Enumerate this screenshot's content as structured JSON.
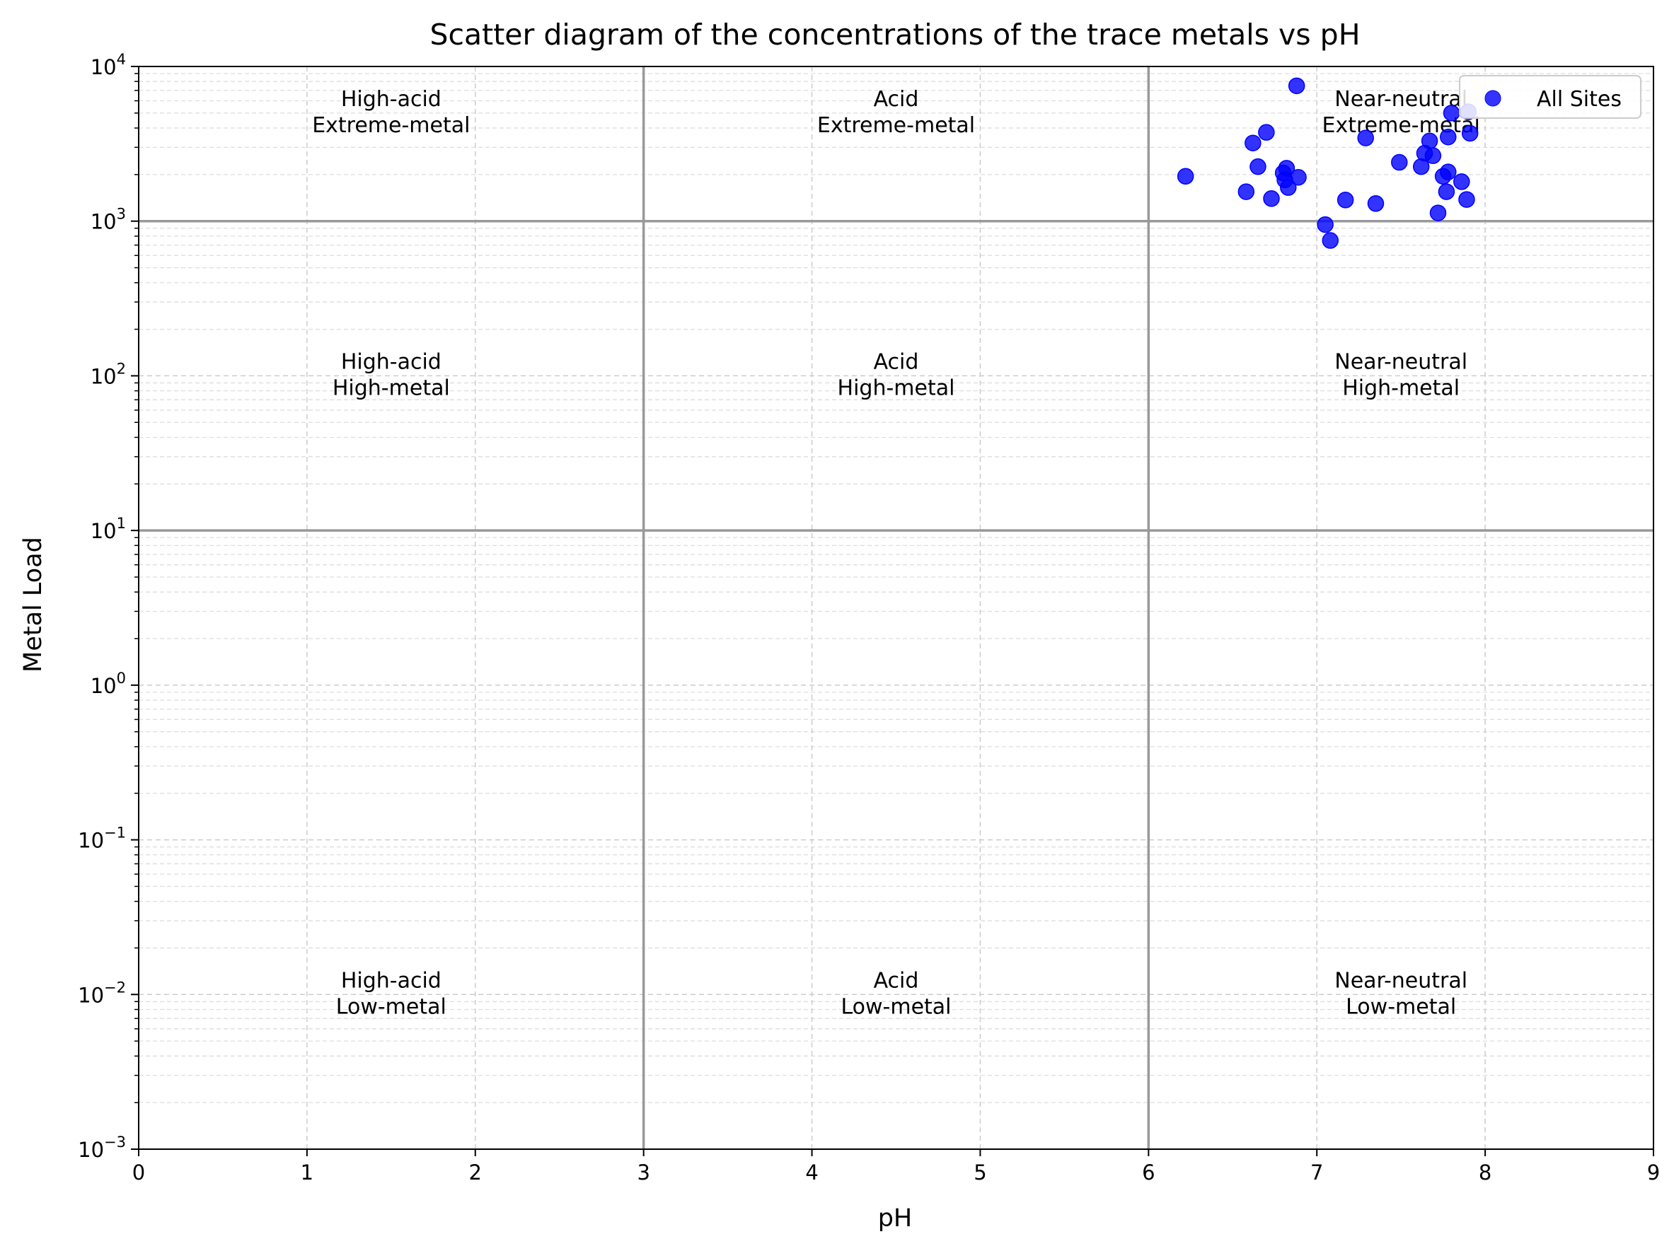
{
  "chart_data": {
    "type": "scatter",
    "title": "Scatter diagram of the concentrations of the trace metals vs pH",
    "xlabel": "pH",
    "ylabel": "Metal Load",
    "xlim": [
      0,
      9
    ],
    "ylim": [
      0.001,
      10000
    ],
    "yscale": "log",
    "grid": true,
    "x_ticks": [
      "0",
      "1",
      "2",
      "3",
      "4",
      "5",
      "6",
      "7",
      "8",
      "9"
    ],
    "y_tick_mantissa": "10",
    "y_tick_exponents": [
      "−3",
      "−2",
      "−1",
      "0",
      "1",
      "2",
      "3",
      "4"
    ],
    "thresholds": {
      "x": [
        3,
        6
      ],
      "y": [
        10,
        1000
      ]
    },
    "legend": {
      "position": "top-right",
      "entries": [
        "All Sites"
      ]
    },
    "zones": [
      {
        "x": 1.5,
        "y": 5000,
        "line1": "High-acid",
        "line2": "Extreme-metal"
      },
      {
        "x": 4.5,
        "y": 5000,
        "line1": "Acid",
        "line2": "Extreme-metal"
      },
      {
        "x": 7.5,
        "y": 5000,
        "line1": "Near-neutral",
        "line2": "Extreme-metal"
      },
      {
        "x": 1.5,
        "y": 100,
        "line1": "High-acid",
        "line2": "High-metal"
      },
      {
        "x": 4.5,
        "y": 100,
        "line1": "Acid",
        "line2": "High-metal"
      },
      {
        "x": 7.5,
        "y": 100,
        "line1": "Near-neutral",
        "line2": "High-metal"
      },
      {
        "x": 1.5,
        "y": 0.01,
        "line1": "High-acid",
        "line2": "Low-metal"
      },
      {
        "x": 4.5,
        "y": 0.01,
        "line1": "Acid",
        "line2": "Low-metal"
      },
      {
        "x": 7.5,
        "y": 0.01,
        "line1": "Near-neutral",
        "line2": "Low-metal"
      }
    ],
    "series": [
      {
        "name": "All Sites",
        "color": "#0000ff",
        "points": [
          [
            6.22,
            1950
          ],
          [
            6.58,
            1550
          ],
          [
            6.62,
            3200
          ],
          [
            6.65,
            2250
          ],
          [
            6.7,
            3750
          ],
          [
            6.73,
            1400
          ],
          [
            6.8,
            2050
          ],
          [
            6.81,
            1850
          ],
          [
            6.82,
            2200
          ],
          [
            6.83,
            1650
          ],
          [
            6.88,
            7500
          ],
          [
            6.89,
            1920
          ],
          [
            7.05,
            950
          ],
          [
            7.08,
            750
          ],
          [
            7.17,
            1370
          ],
          [
            7.29,
            3450
          ],
          [
            7.35,
            1300
          ],
          [
            7.49,
            2400
          ],
          [
            7.62,
            2250
          ],
          [
            7.64,
            2750
          ],
          [
            7.67,
            3300
          ],
          [
            7.69,
            2650
          ],
          [
            7.72,
            1130
          ],
          [
            7.75,
            1950
          ],
          [
            7.77,
            1550
          ],
          [
            7.78,
            3500
          ],
          [
            7.78,
            2080
          ],
          [
            7.8,
            5000
          ],
          [
            7.86,
            1800
          ],
          [
            7.89,
            1380
          ],
          [
            7.91,
            3700
          ],
          [
            7.9,
            5100
          ]
        ]
      }
    ]
  }
}
